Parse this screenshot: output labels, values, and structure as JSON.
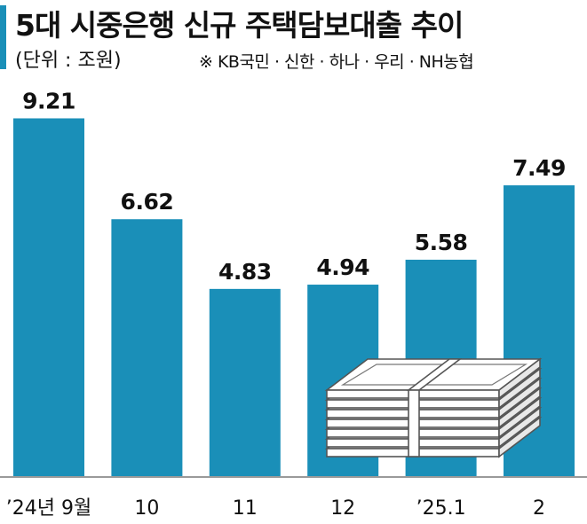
{
  "header": {
    "title": "5대 시중은행 신규 주택담보대출 추이",
    "unit": "(단위 : 조원)",
    "source": "※ KB국민 · 신한 · 하나 · 우리 · NH농협"
  },
  "colors": {
    "bar": "#1a8fb8",
    "accent": "#1a8fb8",
    "text": "#111111"
  },
  "chart_data": {
    "type": "bar",
    "title": "5대 시중은행 신규 주택담보대출 추이",
    "xlabel": "",
    "ylabel": "조원",
    "categories": [
      "’24년 9월",
      "10",
      "11",
      "12",
      "’25.1",
      "2"
    ],
    "value_labels": [
      "9.21",
      "6.62",
      "4.83",
      "4.94",
      "5.58",
      "7.49"
    ],
    "values": [
      9.21,
      6.62,
      4.83,
      4.94,
      5.58,
      7.49
    ],
    "ylim": [
      0,
      10.2
    ],
    "grid": false,
    "legend": "none"
  }
}
